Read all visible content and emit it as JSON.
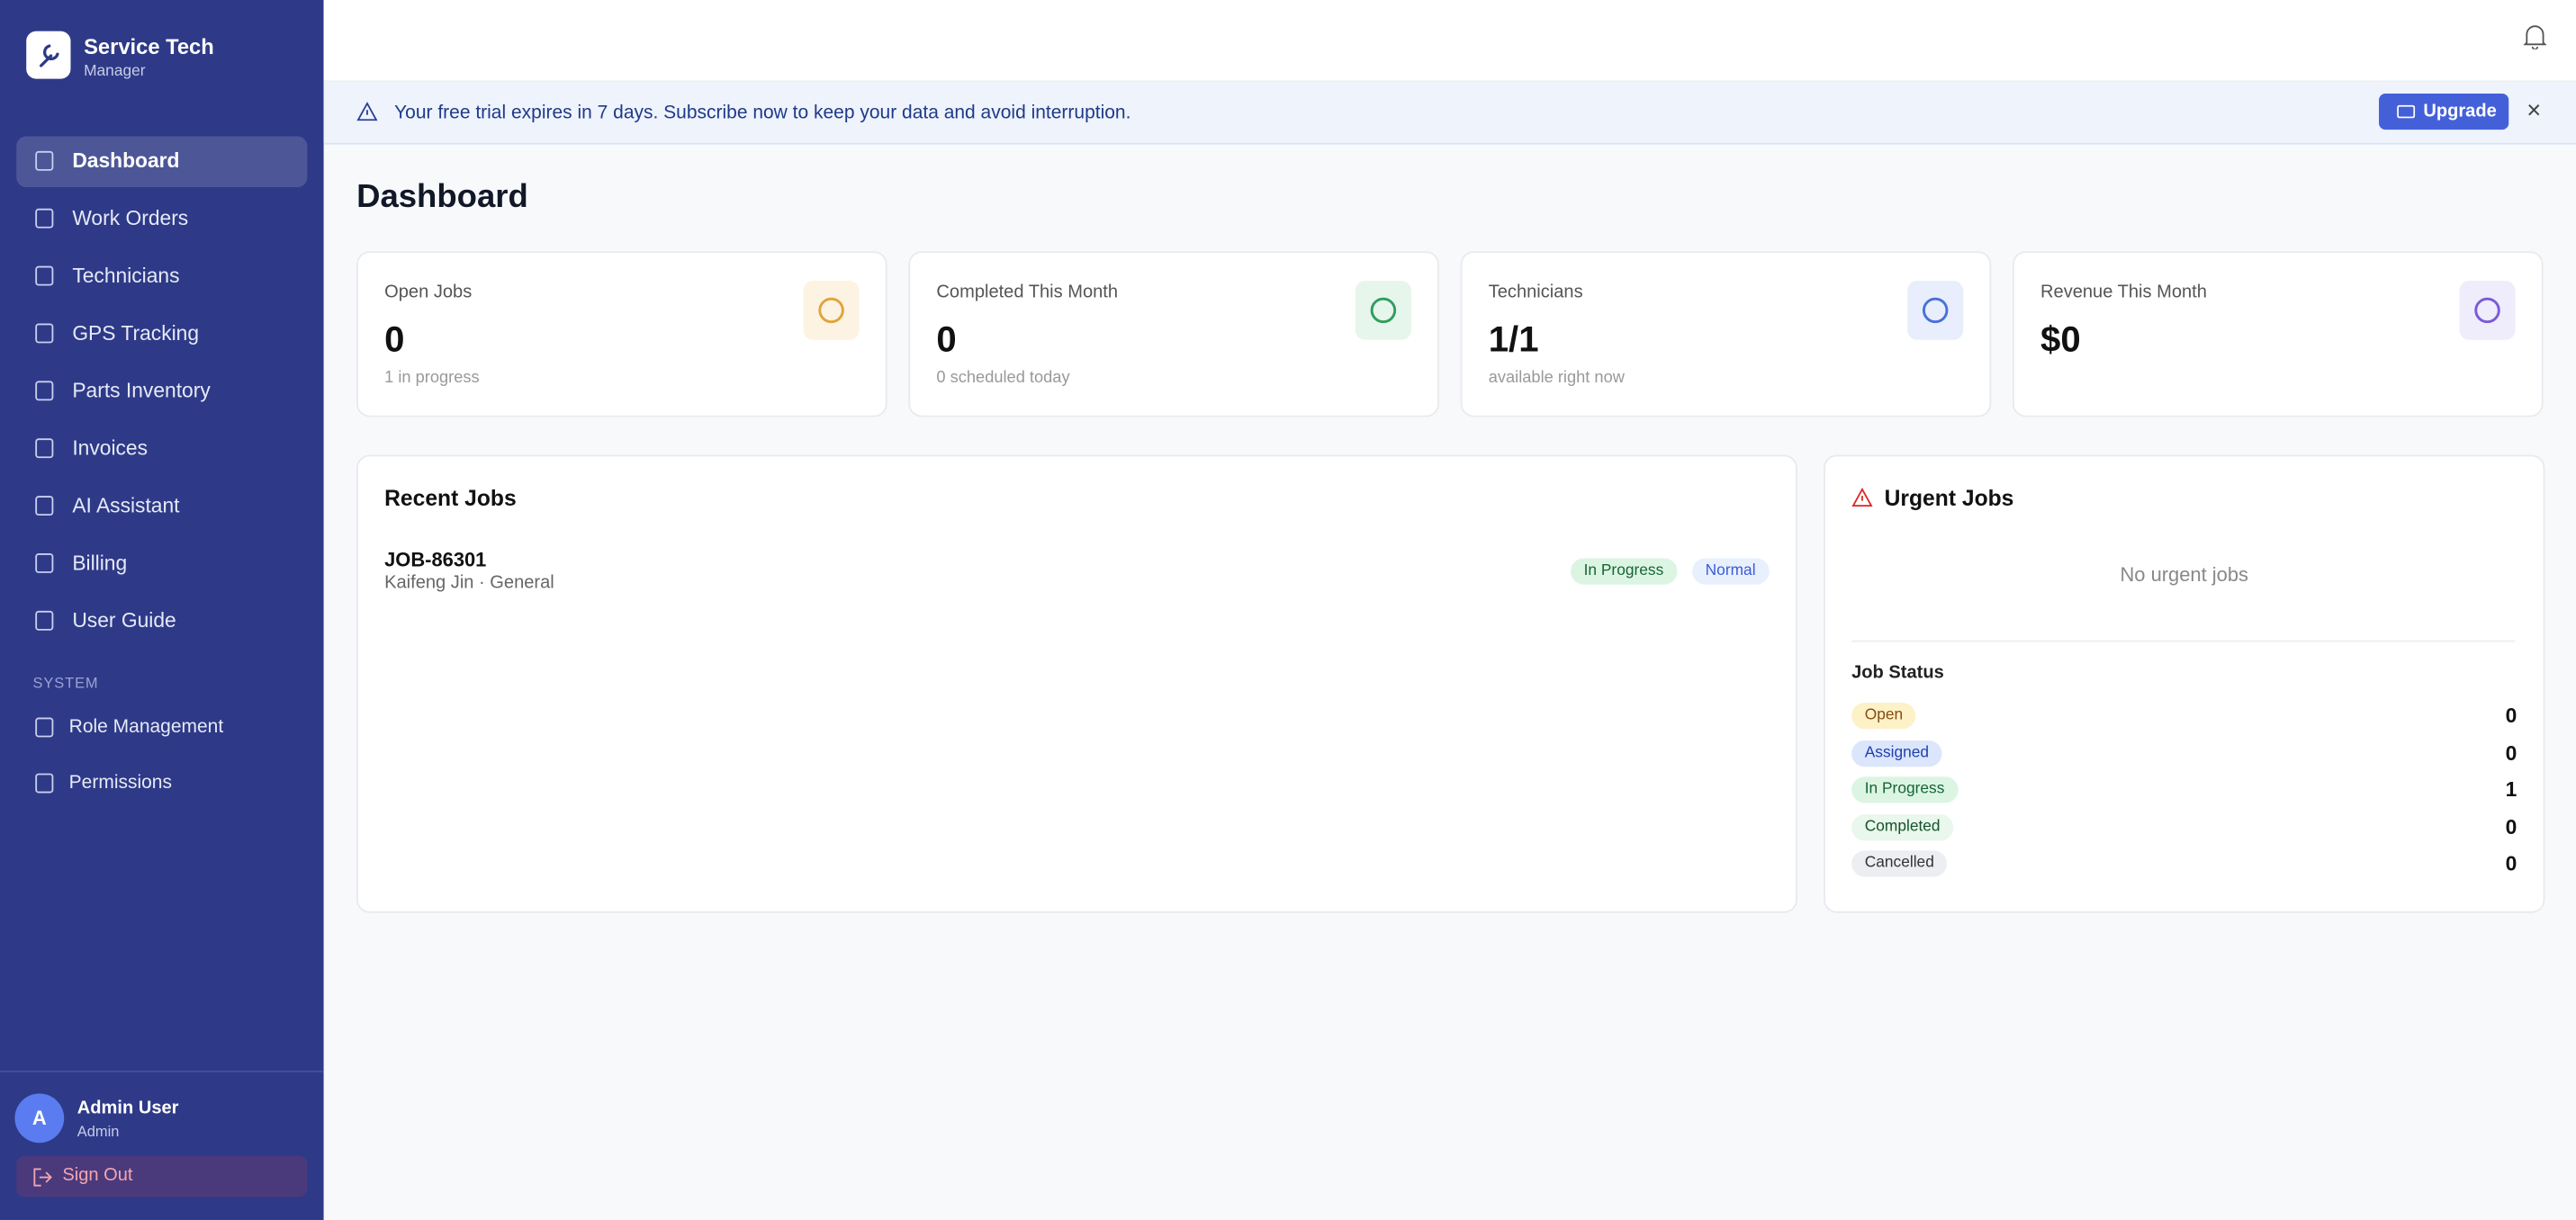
{
  "sidebar": {
    "brand": {
      "title": "Service Tech",
      "subtitle": "Manager"
    },
    "nav": [
      "Dashboard",
      "Work Orders",
      "Technicians",
      "GPS Tracking",
      "Parts Inventory",
      "Invoices",
      "AI Assistant",
      "Billing",
      "User Guide"
    ],
    "section_label": "SYSTEM",
    "system_nav": [
      "Role Management",
      "Permissions"
    ],
    "user": {
      "initial": "A",
      "name": "Admin User",
      "role": "Admin"
    },
    "sign_out": "Sign Out"
  },
  "banner": {
    "message": "Your free trial expires in 7 days. Subscribe now to keep your data and avoid interruption.",
    "button": "Upgrade",
    "close": "×"
  },
  "page_title": "Dashboard",
  "stats": [
    {
      "label": "Open Jobs",
      "value": "0",
      "sub": "1 in progress"
    },
    {
      "label": "Completed This Month",
      "value": "0",
      "sub": "0 scheduled today"
    },
    {
      "label": "Technicians",
      "value": "1/1",
      "sub": "available right now"
    },
    {
      "label": "Revenue This Month",
      "value": "$0"
    }
  ],
  "recent_jobs": {
    "title": "Recent Jobs",
    "jobs": [
      {
        "id": "JOB-86301",
        "detail": "Kaifeng Jin · General",
        "status": "In Progress",
        "priority": "Normal"
      }
    ]
  },
  "urgent_jobs": {
    "title": "Urgent Jobs",
    "empty": "No urgent jobs"
  },
  "job_status": {
    "title": "Job Status",
    "rows": [
      {
        "label": "Open",
        "count": "0"
      },
      {
        "label": "Assigned",
        "count": "0"
      },
      {
        "label": "In Progress",
        "count": "1"
      },
      {
        "label": "Completed",
        "count": "0"
      },
      {
        "label": "Cancelled",
        "count": "0"
      }
    ]
  }
}
